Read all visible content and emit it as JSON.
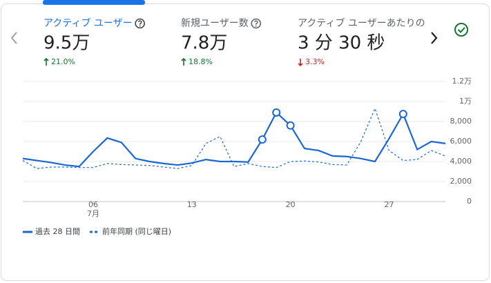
{
  "metrics": [
    {
      "label": "アクティブ ユーザー",
      "value": "9.5万",
      "change": "21.0%",
      "direction": "up",
      "selected": true
    },
    {
      "label": "新規ユーザー数",
      "value": "7.8万",
      "change": "18.8%",
      "direction": "up",
      "selected": false
    },
    {
      "label": "アクティブ ユーザーあたりの",
      "value": "3 分 30 秒",
      "change": "3.3%",
      "direction": "down",
      "selected": false
    }
  ],
  "chart_data": {
    "type": "line",
    "x": [
      1,
      2,
      3,
      4,
      5,
      6,
      7,
      8,
      9,
      10,
      11,
      12,
      13,
      14,
      15,
      16,
      17,
      18,
      19,
      20,
      21,
      22,
      23,
      24,
      25,
      26,
      27,
      28,
      29,
      30,
      31
    ],
    "xlim": [
      1,
      31
    ],
    "xticks": [
      {
        "value": 6,
        "label": "06"
      },
      {
        "value": 13,
        "label": "13"
      },
      {
        "value": 20,
        "label": "20"
      },
      {
        "value": 27,
        "label": "27"
      }
    ],
    "x_month_label": "7月",
    "ylim": [
      0,
      12000
    ],
    "yticks": [
      0,
      {
        "value": 2000,
        "label": "2,000"
      },
      {
        "value": 4000,
        "label": "4,000"
      },
      {
        "value": 6000,
        "label": "6,000"
      },
      {
        "value": 8000,
        "label": "8,000"
      },
      {
        "value": 10000,
        "label": "1万"
      },
      {
        "value": 12000,
        "label": "1.2万"
      }
    ],
    "grid": true,
    "series": [
      {
        "name": "過去 28 日間",
        "color": "#1967d2",
        "style": "solid",
        "marked_points": [
          17,
          18,
          19,
          27
        ],
        "values": [
          4300,
          4100,
          3900,
          3650,
          3500,
          5000,
          6350,
          5900,
          4300,
          4000,
          3800,
          3650,
          3850,
          4200,
          4000,
          4000,
          3950,
          6200,
          8900,
          7600,
          5300,
          5100,
          4550,
          4500,
          4300,
          4000,
          6300,
          8750,
          5200,
          6000,
          5800
        ]
      },
      {
        "name": "前年同期 (同じ曜日)",
        "color": "#1967d2",
        "style": "dashed",
        "values": [
          4100,
          3300,
          3450,
          3450,
          3400,
          3400,
          3800,
          3700,
          3650,
          3600,
          3450,
          3300,
          3600,
          5800,
          6500,
          3500,
          3800,
          3500,
          3400,
          4000,
          4050,
          3950,
          3700,
          3650,
          6000,
          9300,
          5100,
          4100,
          4200,
          5100,
          4550
        ]
      }
    ]
  }
}
